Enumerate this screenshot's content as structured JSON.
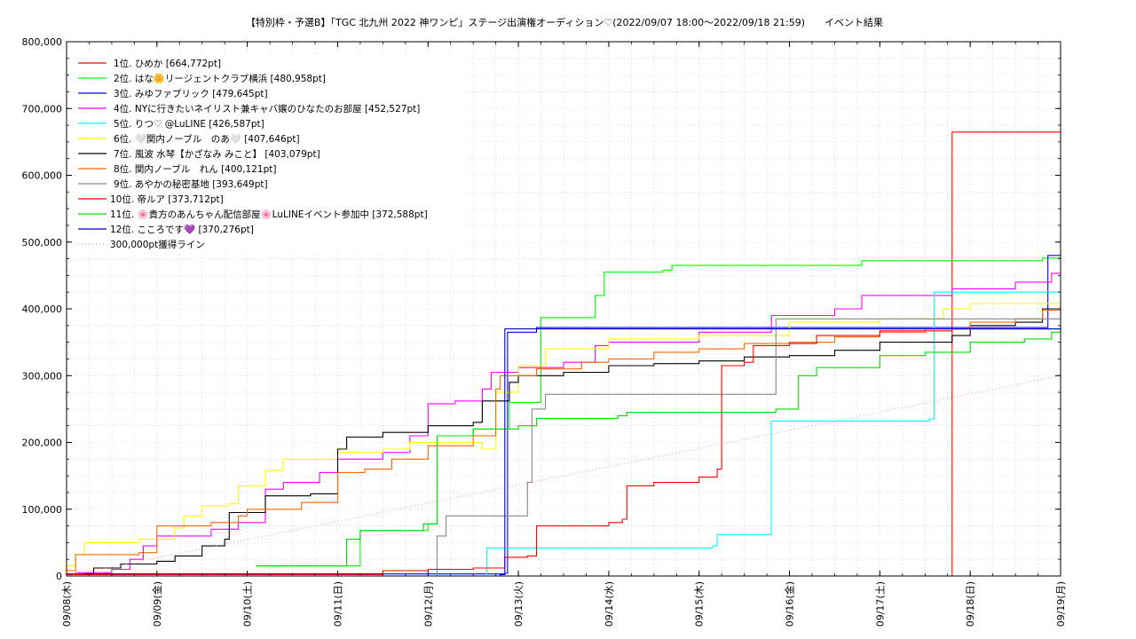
{
  "chart_data": {
    "type": "line",
    "title": "【特別枠・予選B】「TGC 北九州 2022 神ワンピ」ステージ出演権オーディション♡(2022/09/07 18:00～2022/09/18 21:59)　　イベント結果",
    "xlabel": "",
    "ylabel": "",
    "x_range_days": [
      0,
      11
    ],
    "ylim": [
      0,
      800000
    ],
    "y_ticks": [
      "0",
      "100,000",
      "200,000",
      "300,000",
      "400,000",
      "500,000",
      "600,000",
      "700,000",
      "800,000"
    ],
    "y_tick_values": [
      0,
      100000,
      200000,
      300000,
      400000,
      500000,
      600000,
      700000,
      800000
    ],
    "x_ticks": [
      "09/08(木)",
      "09/09(金)",
      "09/10(土)",
      "09/11(日)",
      "09/12(月)",
      "09/13(火)",
      "09/14(水)",
      "09/15(木)",
      "09/16(金)",
      "09/17(土)",
      "09/18(日)",
      "09/19(月)"
    ],
    "grid": true,
    "legend_position": "top-left",
    "series": [
      {
        "name": "1位. ひめか [664,772pt]",
        "color": "#ff0000",
        "dash": "",
        "points": [
          [
            0,
            0
          ],
          [
            9.75,
            0
          ],
          [
            9.8,
            664772
          ],
          [
            11,
            664772
          ]
        ]
      },
      {
        "name": "2位. はな🌼リージェントクラブ横浜 [480,958pt]",
        "color": "#00ff00",
        "dash": "",
        "points": [
          [
            2.1,
            15000
          ],
          [
            3.05,
            15000
          ],
          [
            3.25,
            68000
          ],
          [
            3.8,
            68000
          ],
          [
            4.0,
            78000
          ],
          [
            4.1,
            210000
          ],
          [
            4.5,
            220000
          ],
          [
            4.9,
            260000
          ],
          [
            5.25,
            387000
          ],
          [
            5.8,
            387000
          ],
          [
            5.85,
            420000
          ],
          [
            5.95,
            455000
          ],
          [
            6.6,
            458000
          ],
          [
            6.7,
            465000
          ],
          [
            7.8,
            465000
          ],
          [
            8.8,
            472000
          ],
          [
            10.8,
            476000
          ],
          [
            11,
            481000
          ]
        ]
      },
      {
        "name": "3位. みゆファブリック [479,645pt]",
        "color": "#0000ff",
        "dash": "",
        "points": [
          [
            0,
            3000
          ],
          [
            4.85,
            4000
          ],
          [
            4.88,
            365000
          ],
          [
            5.2,
            372000
          ],
          [
            10.85,
            372000
          ],
          [
            10.86,
            480000
          ],
          [
            11,
            479645
          ]
        ]
      },
      {
        "name": "4位. NYに行きたいネイリスト兼キャバ嬢のひなたのお部屋 [452,527pt]",
        "color": "#ff00ff",
        "dash": "",
        "points": [
          [
            0.1,
            5000
          ],
          [
            0.5,
            10000
          ],
          [
            0.7,
            25000
          ],
          [
            0.85,
            45000
          ],
          [
            1.0,
            60000
          ],
          [
            1.6,
            70000
          ],
          [
            1.9,
            80000
          ],
          [
            2.2,
            130000
          ],
          [
            2.4,
            140000
          ],
          [
            2.8,
            155000
          ],
          [
            3.0,
            175000
          ],
          [
            3.5,
            185000
          ],
          [
            3.8,
            210000
          ],
          [
            4.0,
            258000
          ],
          [
            4.3,
            262000
          ],
          [
            4.6,
            280000
          ],
          [
            4.7,
            305000
          ],
          [
            5.0,
            312000
          ],
          [
            5.5,
            320000
          ],
          [
            5.85,
            345000
          ],
          [
            6.0,
            350000
          ],
          [
            7.0,
            365000
          ],
          [
            7.8,
            390000
          ],
          [
            8.5,
            400000
          ],
          [
            8.8,
            420000
          ],
          [
            9.6,
            420000
          ],
          [
            9.8,
            430000
          ],
          [
            10.5,
            440000
          ],
          [
            10.9,
            453000
          ],
          [
            11,
            452527
          ]
        ]
      },
      {
        "name": "5位. りつ♡ @LuLINE [426,587pt]",
        "color": "#00ffff",
        "dash": "",
        "points": [
          [
            4.65,
            2000
          ],
          [
            4.65,
            42000
          ],
          [
            6.0,
            42000
          ],
          [
            7.15,
            45000
          ],
          [
            7.2,
            62000
          ],
          [
            7.75,
            62000
          ],
          [
            7.8,
            232000
          ],
          [
            9.55,
            235000
          ],
          [
            9.6,
            425000
          ],
          [
            11,
            426587
          ]
        ]
      },
      {
        "name": "6位. 🤍関内ノーブル　のあ🤍 [407,646pt]",
        "color": "#ffff00",
        "dash": "",
        "points": [
          [
            0,
            15000
          ],
          [
            0.1,
            32000
          ],
          [
            0.2,
            50000
          ],
          [
            0.8,
            55000
          ],
          [
            1.2,
            72000
          ],
          [
            1.3,
            90000
          ],
          [
            1.5,
            105000
          ],
          [
            1.8,
            108000
          ],
          [
            1.9,
            135000
          ],
          [
            2.2,
            158000
          ],
          [
            2.4,
            175000
          ],
          [
            3.0,
            185000
          ],
          [
            3.5,
            190000
          ],
          [
            3.8,
            200000
          ],
          [
            4.6,
            190000
          ],
          [
            4.75,
            275000
          ],
          [
            5.0,
            315000
          ],
          [
            5.3,
            340000
          ],
          [
            6.0,
            355000
          ],
          [
            7.0,
            360000
          ],
          [
            8.0,
            380000
          ],
          [
            9.0,
            385000
          ],
          [
            9.7,
            400000
          ],
          [
            10.0,
            408000
          ],
          [
            11,
            407646
          ]
        ]
      },
      {
        "name": "7位. 風波 水琴【かざなみ みこと】 [403,079pt]",
        "color": "#000000",
        "dash": "",
        "points": [
          [
            0.2,
            3000
          ],
          [
            0.3,
            12000
          ],
          [
            0.6,
            18000
          ],
          [
            1.0,
            22000
          ],
          [
            1.2,
            30000
          ],
          [
            1.5,
            45000
          ],
          [
            1.75,
            55000
          ],
          [
            1.8,
            95000
          ],
          [
            2.2,
            105000
          ],
          [
            2.2,
            120000
          ],
          [
            2.7,
            123000
          ],
          [
            3.0,
            130000
          ],
          [
            3.0,
            190000
          ],
          [
            3.1,
            208000
          ],
          [
            3.5,
            215000
          ],
          [
            4.0,
            225000
          ],
          [
            4.5,
            230000
          ],
          [
            4.6,
            262000
          ],
          [
            4.9,
            290000
          ],
          [
            5.0,
            300000
          ],
          [
            5.5,
            305000
          ],
          [
            6.0,
            315000
          ],
          [
            6.5,
            318000
          ],
          [
            7.0,
            322000
          ],
          [
            7.5,
            328000
          ],
          [
            8.0,
            330000
          ],
          [
            8.5,
            338000
          ],
          [
            9.0,
            350000
          ],
          [
            9.8,
            360000
          ],
          [
            10.0,
            375000
          ],
          [
            10.5,
            380000
          ],
          [
            10.8,
            400000
          ],
          [
            11,
            403079
          ]
        ]
      },
      {
        "name": "8位. 関内ノーブル　れん [400,121pt]",
        "color": "#ff6600",
        "dash": "",
        "points": [
          [
            0,
            8000
          ],
          [
            0.1,
            32000
          ],
          [
            0.8,
            35000
          ],
          [
            1.0,
            75000
          ],
          [
            1.6,
            80000
          ],
          [
            1.9,
            90000
          ],
          [
            2.0,
            100000
          ],
          [
            2.6,
            110000
          ],
          [
            3.0,
            155000
          ],
          [
            3.3,
            160000
          ],
          [
            3.6,
            175000
          ],
          [
            4.0,
            195000
          ],
          [
            4.5,
            210000
          ],
          [
            4.75,
            280000
          ],
          [
            4.8,
            300000
          ],
          [
            5.2,
            310000
          ],
          [
            5.7,
            320000
          ],
          [
            6.0,
            325000
          ],
          [
            6.5,
            335000
          ],
          [
            7.0,
            340000
          ],
          [
            7.5,
            348000
          ],
          [
            8.0,
            350000
          ],
          [
            8.5,
            358000
          ],
          [
            9.0,
            365000
          ],
          [
            9.5,
            370000
          ],
          [
            10.0,
            380000
          ],
          [
            10.5,
            385000
          ],
          [
            10.8,
            398000
          ],
          [
            11,
            400121
          ]
        ]
      },
      {
        "name": "9位. あやかの秘密基地 [393,649pt]",
        "color": "#888888",
        "dash": "",
        "points": [
          [
            4.05,
            0
          ],
          [
            4.1,
            60000
          ],
          [
            4.2,
            90000
          ],
          [
            4.4,
            90000
          ],
          [
            4.8,
            90000
          ],
          [
            5.1,
            140000
          ],
          [
            5.15,
            250000
          ],
          [
            5.3,
            272000
          ],
          [
            7.8,
            272000
          ],
          [
            7.85,
            385000
          ],
          [
            11,
            393649
          ]
        ]
      },
      {
        "name": "10位. 帝ルア [373,712pt]",
        "color": "#ff0000",
        "dash": "",
        "points": [
          [
            0,
            2000
          ],
          [
            2.5,
            2000
          ],
          [
            3.5,
            8000
          ],
          [
            4.0,
            10000
          ],
          [
            4.5,
            12000
          ],
          [
            4.85,
            28000
          ],
          [
            5.1,
            30000
          ],
          [
            5.2,
            75000
          ],
          [
            6.0,
            80000
          ],
          [
            6.15,
            85000
          ],
          [
            6.2,
            135000
          ],
          [
            6.5,
            140000
          ],
          [
            7.0,
            148000
          ],
          [
            7.2,
            160000
          ],
          [
            7.25,
            315000
          ],
          [
            7.5,
            320000
          ],
          [
            7.6,
            345000
          ],
          [
            8.0,
            348000
          ],
          [
            8.3,
            360000
          ],
          [
            9.0,
            367000
          ],
          [
            9.8,
            370000
          ],
          [
            11,
            373712
          ]
        ]
      },
      {
        "name": "11位. 🌸貴方のあんちゃん配信部屋🌸LuLINEイベント参加中 [372,588pt]",
        "color": "#00dd00",
        "dash": "",
        "points": [
          [
            2.1,
            15000
          ],
          [
            3.05,
            15000
          ],
          [
            3.1,
            55000
          ],
          [
            3.25,
            68000
          ],
          [
            3.8,
            68000
          ],
          [
            3.95,
            78000
          ],
          [
            4.1,
            210000
          ],
          [
            4.5,
            220000
          ],
          [
            5.0,
            225000
          ],
          [
            5.2,
            236000
          ],
          [
            6.1,
            240000
          ],
          [
            6.2,
            245000
          ],
          [
            7.6,
            245000
          ],
          [
            7.85,
            250000
          ],
          [
            8.1,
            300000
          ],
          [
            8.3,
            312000
          ],
          [
            9.0,
            330000
          ],
          [
            9.5,
            335000
          ],
          [
            10.0,
            350000
          ],
          [
            10.6,
            355000
          ],
          [
            10.9,
            365000
          ],
          [
            11,
            372588
          ]
        ]
      },
      {
        "name": "12位. こころです💜 [370,276pt]",
        "color": "#0000cc",
        "dash": "",
        "points": [
          [
            0,
            0
          ],
          [
            4.8,
            2000
          ],
          [
            4.85,
            370000
          ],
          [
            11,
            370276
          ]
        ]
      },
      {
        "name": "300,000pt獲得ライン",
        "color": "#ff9999",
        "dash": "1,3",
        "points": [
          [
            0,
            0
          ],
          [
            11,
            300000
          ]
        ]
      }
    ]
  }
}
